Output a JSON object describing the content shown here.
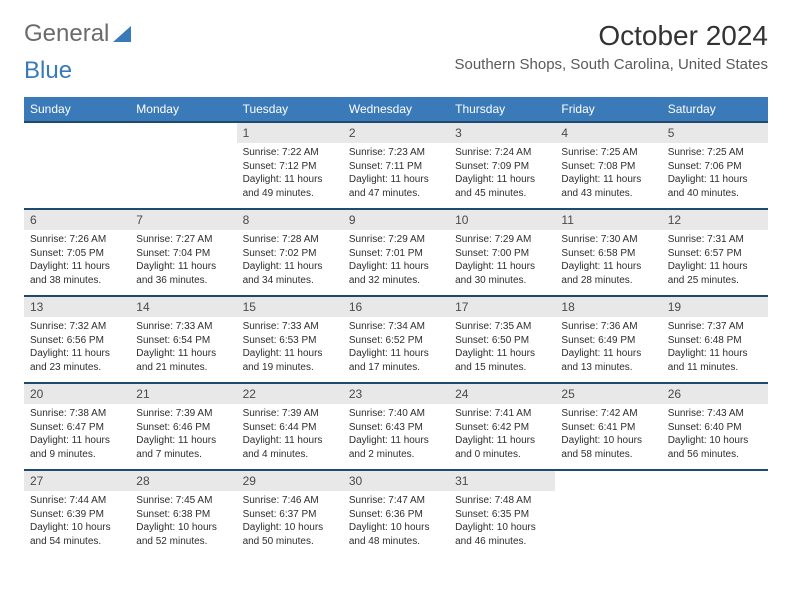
{
  "logo": {
    "part1": "General",
    "part2": "Blue"
  },
  "title": "October 2024",
  "location": "Southern Shops, South Carolina, United States",
  "colors": {
    "header_bg": "#3a7ab8",
    "header_text": "#ffffff",
    "daynum_bg": "#e8e8e8",
    "daynum_border": "#1e4a70",
    "body_text": "#2e2e2e"
  },
  "daysOfWeek": [
    "Sunday",
    "Monday",
    "Tuesday",
    "Wednesday",
    "Thursday",
    "Friday",
    "Saturday"
  ],
  "weeks": [
    [
      null,
      null,
      {
        "n": "1",
        "sr": "Sunrise: 7:22 AM",
        "ss": "Sunset: 7:12 PM",
        "dl1": "Daylight: 11 hours",
        "dl2": "and 49 minutes."
      },
      {
        "n": "2",
        "sr": "Sunrise: 7:23 AM",
        "ss": "Sunset: 7:11 PM",
        "dl1": "Daylight: 11 hours",
        "dl2": "and 47 minutes."
      },
      {
        "n": "3",
        "sr": "Sunrise: 7:24 AM",
        "ss": "Sunset: 7:09 PM",
        "dl1": "Daylight: 11 hours",
        "dl2": "and 45 minutes."
      },
      {
        "n": "4",
        "sr": "Sunrise: 7:25 AM",
        "ss": "Sunset: 7:08 PM",
        "dl1": "Daylight: 11 hours",
        "dl2": "and 43 minutes."
      },
      {
        "n": "5",
        "sr": "Sunrise: 7:25 AM",
        "ss": "Sunset: 7:06 PM",
        "dl1": "Daylight: 11 hours",
        "dl2": "and 40 minutes."
      }
    ],
    [
      {
        "n": "6",
        "sr": "Sunrise: 7:26 AM",
        "ss": "Sunset: 7:05 PM",
        "dl1": "Daylight: 11 hours",
        "dl2": "and 38 minutes."
      },
      {
        "n": "7",
        "sr": "Sunrise: 7:27 AM",
        "ss": "Sunset: 7:04 PM",
        "dl1": "Daylight: 11 hours",
        "dl2": "and 36 minutes."
      },
      {
        "n": "8",
        "sr": "Sunrise: 7:28 AM",
        "ss": "Sunset: 7:02 PM",
        "dl1": "Daylight: 11 hours",
        "dl2": "and 34 minutes."
      },
      {
        "n": "9",
        "sr": "Sunrise: 7:29 AM",
        "ss": "Sunset: 7:01 PM",
        "dl1": "Daylight: 11 hours",
        "dl2": "and 32 minutes."
      },
      {
        "n": "10",
        "sr": "Sunrise: 7:29 AM",
        "ss": "Sunset: 7:00 PM",
        "dl1": "Daylight: 11 hours",
        "dl2": "and 30 minutes."
      },
      {
        "n": "11",
        "sr": "Sunrise: 7:30 AM",
        "ss": "Sunset: 6:58 PM",
        "dl1": "Daylight: 11 hours",
        "dl2": "and 28 minutes."
      },
      {
        "n": "12",
        "sr": "Sunrise: 7:31 AM",
        "ss": "Sunset: 6:57 PM",
        "dl1": "Daylight: 11 hours",
        "dl2": "and 25 minutes."
      }
    ],
    [
      {
        "n": "13",
        "sr": "Sunrise: 7:32 AM",
        "ss": "Sunset: 6:56 PM",
        "dl1": "Daylight: 11 hours",
        "dl2": "and 23 minutes."
      },
      {
        "n": "14",
        "sr": "Sunrise: 7:33 AM",
        "ss": "Sunset: 6:54 PM",
        "dl1": "Daylight: 11 hours",
        "dl2": "and 21 minutes."
      },
      {
        "n": "15",
        "sr": "Sunrise: 7:33 AM",
        "ss": "Sunset: 6:53 PM",
        "dl1": "Daylight: 11 hours",
        "dl2": "and 19 minutes."
      },
      {
        "n": "16",
        "sr": "Sunrise: 7:34 AM",
        "ss": "Sunset: 6:52 PM",
        "dl1": "Daylight: 11 hours",
        "dl2": "and 17 minutes."
      },
      {
        "n": "17",
        "sr": "Sunrise: 7:35 AM",
        "ss": "Sunset: 6:50 PM",
        "dl1": "Daylight: 11 hours",
        "dl2": "and 15 minutes."
      },
      {
        "n": "18",
        "sr": "Sunrise: 7:36 AM",
        "ss": "Sunset: 6:49 PM",
        "dl1": "Daylight: 11 hours",
        "dl2": "and 13 minutes."
      },
      {
        "n": "19",
        "sr": "Sunrise: 7:37 AM",
        "ss": "Sunset: 6:48 PM",
        "dl1": "Daylight: 11 hours",
        "dl2": "and 11 minutes."
      }
    ],
    [
      {
        "n": "20",
        "sr": "Sunrise: 7:38 AM",
        "ss": "Sunset: 6:47 PM",
        "dl1": "Daylight: 11 hours",
        "dl2": "and 9 minutes."
      },
      {
        "n": "21",
        "sr": "Sunrise: 7:39 AM",
        "ss": "Sunset: 6:46 PM",
        "dl1": "Daylight: 11 hours",
        "dl2": "and 7 minutes."
      },
      {
        "n": "22",
        "sr": "Sunrise: 7:39 AM",
        "ss": "Sunset: 6:44 PM",
        "dl1": "Daylight: 11 hours",
        "dl2": "and 4 minutes."
      },
      {
        "n": "23",
        "sr": "Sunrise: 7:40 AM",
        "ss": "Sunset: 6:43 PM",
        "dl1": "Daylight: 11 hours",
        "dl2": "and 2 minutes."
      },
      {
        "n": "24",
        "sr": "Sunrise: 7:41 AM",
        "ss": "Sunset: 6:42 PM",
        "dl1": "Daylight: 11 hours",
        "dl2": "and 0 minutes."
      },
      {
        "n": "25",
        "sr": "Sunrise: 7:42 AM",
        "ss": "Sunset: 6:41 PM",
        "dl1": "Daylight: 10 hours",
        "dl2": "and 58 minutes."
      },
      {
        "n": "26",
        "sr": "Sunrise: 7:43 AM",
        "ss": "Sunset: 6:40 PM",
        "dl1": "Daylight: 10 hours",
        "dl2": "and 56 minutes."
      }
    ],
    [
      {
        "n": "27",
        "sr": "Sunrise: 7:44 AM",
        "ss": "Sunset: 6:39 PM",
        "dl1": "Daylight: 10 hours",
        "dl2": "and 54 minutes."
      },
      {
        "n": "28",
        "sr": "Sunrise: 7:45 AM",
        "ss": "Sunset: 6:38 PM",
        "dl1": "Daylight: 10 hours",
        "dl2": "and 52 minutes."
      },
      {
        "n": "29",
        "sr": "Sunrise: 7:46 AM",
        "ss": "Sunset: 6:37 PM",
        "dl1": "Daylight: 10 hours",
        "dl2": "and 50 minutes."
      },
      {
        "n": "30",
        "sr": "Sunrise: 7:47 AM",
        "ss": "Sunset: 6:36 PM",
        "dl1": "Daylight: 10 hours",
        "dl2": "and 48 minutes."
      },
      {
        "n": "31",
        "sr": "Sunrise: 7:48 AM",
        "ss": "Sunset: 6:35 PM",
        "dl1": "Daylight: 10 hours",
        "dl2": "and 46 minutes."
      },
      null,
      null
    ]
  ]
}
